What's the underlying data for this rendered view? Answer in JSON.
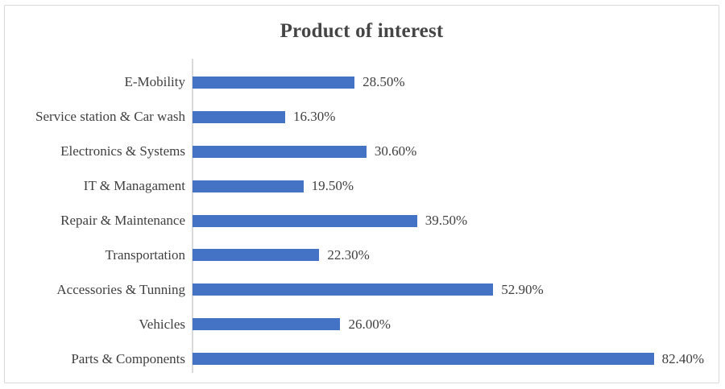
{
  "chart_data": {
    "type": "bar",
    "orientation": "horizontal",
    "title": "Product of interest",
    "categories": [
      "E-Mobility",
      "Service station & Car wash",
      "Electronics & Systems",
      "IT & Managament",
      "Repair & Maintenance",
      "Transportation",
      "Accessories & Tunning",
      "Vehicles",
      "Parts & Components"
    ],
    "values": [
      28.5,
      16.3,
      30.6,
      19.5,
      39.5,
      22.3,
      52.9,
      26.0,
      82.4
    ],
    "value_labels": [
      "28.50%",
      "16.30%",
      "30.60%",
      "19.50%",
      "39.50%",
      "22.30%",
      "52.90%",
      "26.00%",
      "82.40%"
    ],
    "xlabel": "",
    "ylabel": "",
    "xlim": [
      0,
      90
    ],
    "grid": false,
    "legend": false,
    "data_labels": true
  },
  "colors": {
    "bar": "#4472C4",
    "axis_line": "#D9D9D9",
    "frame_border": "#D9D9D9",
    "title_text": "#454545",
    "label_text": "#3F3F3F",
    "background": "#FFFFFF"
  }
}
